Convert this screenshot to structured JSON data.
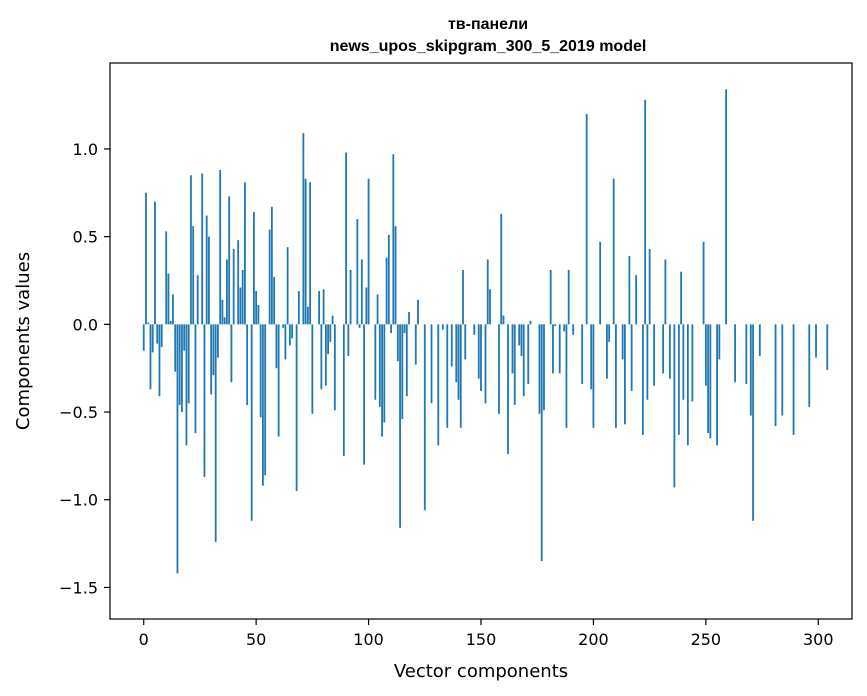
{
  "chart_data": {
    "type": "bar",
    "title": [
      "тв-панели",
      "news_upos_skipgram_300_5_2019 model"
    ],
    "xlabel": "Vector components",
    "ylabel": "Components values",
    "xlim": [
      -15,
      315
    ],
    "ylim": [
      -1.68,
      1.49
    ],
    "xticks": [
      0,
      50,
      100,
      150,
      200,
      250,
      300
    ],
    "xtick_labels": [
      "0",
      "50",
      "100",
      "150",
      "200",
      "250",
      "300"
    ],
    "yticks": [
      -1.5,
      -1.0,
      -0.5,
      0.0,
      0.5,
      1.0
    ],
    "ytick_labels": [
      "−1.5",
      "−1.0",
      "−0.5",
      "0.0",
      "0.5",
      "1.0"
    ],
    "grid": false,
    "bar_color": "#1f77b4",
    "values": [
      -0.15,
      0.75,
      0.01,
      -0.37,
      -0.16,
      0.7,
      -0.11,
      -0.41,
      -0.13,
      0.0,
      0.53,
      0.29,
      0.02,
      0.17,
      -0.27,
      -1.42,
      -0.46,
      -0.5,
      -0.15,
      -0.69,
      -0.45,
      0.85,
      0.56,
      -0.62,
      0.28,
      0.0,
      0.86,
      -0.87,
      0.62,
      0.5,
      -0.4,
      -0.29,
      -1.24,
      -0.19,
      0.88,
      0.14,
      0.04,
      0.37,
      0.73,
      -0.33,
      0.43,
      0.0,
      0.48,
      0.21,
      0.31,
      0.81,
      -0.46,
      0.0,
      -1.12,
      0.64,
      0.19,
      0.11,
      -0.53,
      -0.92,
      -0.86,
      0.0,
      0.54,
      0.67,
      0.27,
      -0.25,
      -0.64,
      0.0,
      -0.02,
      -0.2,
      0.44,
      -0.12,
      -0.08,
      0.0,
      -0.95,
      0.19,
      0.0,
      1.09,
      0.83,
      0.1,
      0.81,
      -0.51,
      0.0,
      0.0,
      0.19,
      -0.37,
      0.2,
      -0.35,
      -0.17,
      -0.1,
      0.05,
      -0.49,
      0.0,
      0.0,
      0.0,
      -0.75,
      0.98,
      -0.18,
      0.31,
      0.0,
      0.0,
      0.6,
      -0.02,
      0.37,
      -0.8,
      0.21,
      0.83,
      0.0,
      0.0,
      -0.43,
      0.17,
      -0.47,
      -0.64,
      -0.56,
      0.38,
      0.51,
      -0.05,
      0.97,
      0.56,
      -0.21,
      -1.16,
      -0.54,
      -0.05,
      -0.41,
      0.07,
      0.0,
      0.0,
      -0.23,
      0.14,
      0.0,
      0.0,
      -1.06,
      0.0,
      0.0,
      -0.45,
      0.0,
      0.0,
      -0.69,
      0.0,
      -0.03,
      0.0,
      -0.59,
      0.0,
      -0.24,
      0.0,
      -0.33,
      -0.43,
      -0.59,
      0.31,
      -0.2,
      0.0,
      0.0,
      0.0,
      -0.06,
      0.0,
      -0.31,
      -0.38,
      0.0,
      -0.45,
      0.37,
      0.2,
      0.0,
      0.0,
      0.0,
      -0.51,
      0.63,
      0.05,
      0.0,
      -0.74,
      0.0,
      -0.28,
      -0.46,
      0.0,
      -0.12,
      -0.18,
      -0.41,
      0.0,
      -0.34,
      0.02,
      0.0,
      0.0,
      0.0,
      -0.51,
      -1.35,
      -0.49,
      0.0,
      0.0,
      0.31,
      -0.28,
      -0.01,
      0.0,
      -0.28,
      0.0,
      -0.04,
      -0.59,
      0.31,
      0.0,
      -0.06,
      0.0,
      0.0,
      0.0,
      -0.34,
      0.0,
      1.2,
      0.0,
      -0.37,
      -0.59,
      0.0,
      0.0,
      0.47,
      0.0,
      0.0,
      -0.31,
      -0.1,
      0.0,
      0.83,
      -0.59,
      0.0,
      0.0,
      -0.2,
      -0.57,
      0.0,
      0.39,
      -0.38,
      0.0,
      0.28,
      0.0,
      0.0,
      -0.63,
      1.28,
      -0.43,
      0.43,
      0.0,
      -0.35,
      0.0,
      0.0,
      0.0,
      -0.28,
      0.37,
      0.0,
      -0.31,
      0.0,
      -0.93,
      0.0,
      -0.63,
      0.3,
      -0.43,
      0.0,
      -0.69,
      0.0,
      -0.44,
      0.0,
      0.0,
      0.0,
      0.0,
      0.47,
      -0.35,
      -0.62,
      -0.65,
      0.0,
      0.0,
      -0.69,
      -0.2,
      0.0,
      0.0,
      1.34,
      0.0,
      0.0,
      0.0,
      -0.33,
      0.0,
      0.0,
      0.0,
      0.0,
      -0.34,
      0.0,
      -0.52,
      -1.12,
      0.0,
      0.0,
      -0.18,
      0.0,
      0.0,
      0.0,
      0.0,
      0.0,
      0.0,
      -0.58,
      0.0,
      0.0,
      -0.52,
      0.0,
      0.0,
      0.0,
      0.0,
      -0.63,
      0.0,
      0.0,
      0.0,
      0.0,
      0.0,
      0.0,
      -0.47,
      0.0,
      0.0,
      -0.19,
      0.0,
      0.0,
      0.0,
      0.0,
      -0.26
    ]
  }
}
